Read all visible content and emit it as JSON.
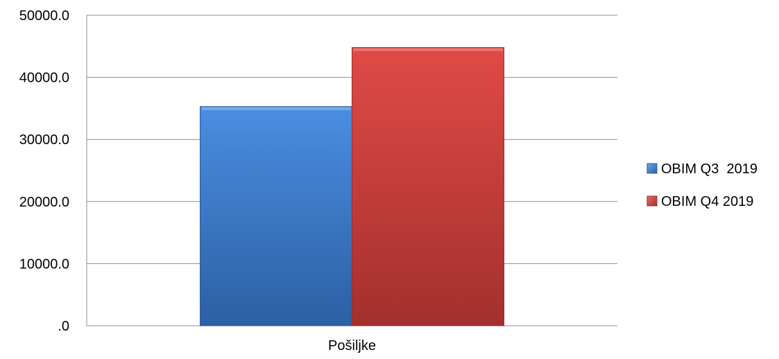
{
  "chart_data": {
    "type": "bar",
    "categories": [
      "Pošiljke"
    ],
    "series": [
      {
        "name": "OBIM Q3  2019",
        "values": [
          35300
        ],
        "color": "#3b78c8"
      },
      {
        "name": "OBIM Q4 2019",
        "values": [
          44800
        ],
        "color": "#cc3b38"
      }
    ],
    "yticks": [
      "50000.0",
      "40000.0",
      "30000.0",
      "20000.0",
      "10000.0",
      ".0"
    ],
    "ylim": [
      0,
      50000
    ],
    "grid": true,
    "legend_position": "right"
  }
}
